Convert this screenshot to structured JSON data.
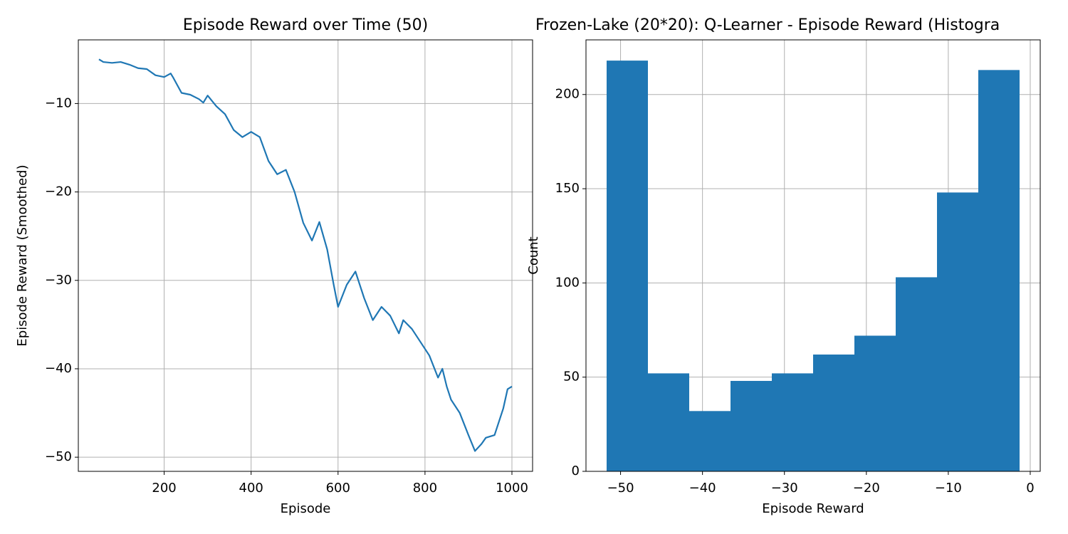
{
  "chart_data": [
    {
      "type": "line",
      "title": "Episode Reward over Time (50)",
      "x_label": "Episode",
      "y_label": "Episode Reward (Smoothed)",
      "x": [
        50,
        60,
        80,
        100,
        120,
        140,
        160,
        180,
        200,
        215,
        220,
        240,
        260,
        280,
        290,
        300,
        320,
        340,
        360,
        380,
        400,
        420,
        440,
        460,
        480,
        500,
        520,
        540,
        557,
        575,
        590,
        600,
        620,
        640,
        660,
        680,
        700,
        720,
        740,
        750,
        770,
        790,
        810,
        830,
        840,
        850,
        860,
        880,
        900,
        915,
        930,
        940,
        960,
        980,
        990,
        1000
      ],
      "values": [
        -5.0,
        -5.3,
        -5.4,
        -5.3,
        -5.6,
        -6.0,
        -6.1,
        -6.8,
        -7.0,
        -6.6,
        -7.0,
        -8.8,
        -9.0,
        -9.5,
        -9.9,
        -9.1,
        -10.3,
        -11.2,
        -13.0,
        -13.8,
        -13.2,
        -13.8,
        -16.5,
        -18.0,
        -17.5,
        -20.0,
        -23.5,
        -25.5,
        -23.4,
        -26.5,
        -30.5,
        -33.0,
        -30.5,
        -29.0,
        -32.0,
        -34.5,
        -33.0,
        -34.0,
        -36.0,
        -34.5,
        -35.5,
        -37.0,
        -38.5,
        -41.0,
        -40.0,
        -42.0,
        -43.5,
        -45.0,
        -47.5,
        -49.3,
        -48.5,
        -47.8,
        -47.5,
        -44.5,
        -42.3,
        -42.0
      ],
      "color": "#1f77b4",
      "grid": true,
      "xlim": [
        2.5,
        1047.5
      ],
      "xticks": [
        200,
        400,
        600,
        800,
        1000
      ],
      "ylim": [
        -51.6,
        -2.8
      ],
      "yticks": [
        {
          "value": -50,
          "label": "−50"
        },
        {
          "value": -40,
          "label": "−40"
        },
        {
          "value": -30,
          "label": "−30"
        },
        {
          "value": -20,
          "label": "−20"
        },
        {
          "value": -10,
          "label": "−10"
        }
      ]
    },
    {
      "type": "histogram",
      "title": "Frozen-Lake (20*20): Q-Learner - Episode Reward (Histogra",
      "x_label": "Episode Reward",
      "y_label": "Count",
      "bins": [
        -51.7,
        -46.66,
        -41.62,
        -36.58,
        -31.54,
        -26.5,
        -21.46,
        -16.42,
        -11.38,
        -6.34,
        -1.3
      ],
      "values": [
        218,
        52,
        32,
        48,
        52,
        62,
        72,
        103,
        148,
        213
      ],
      "color": "#1f77b4",
      "grid": true,
      "xlim": [
        -54.22,
        1.22
      ],
      "xticks": [
        {
          "value": -50,
          "label": "−50"
        },
        {
          "value": -40,
          "label": "−40"
        },
        {
          "value": -30,
          "label": "−30"
        },
        {
          "value": -20,
          "label": "−20"
        },
        {
          "value": -10,
          "label": "−10"
        },
        0
      ],
      "ylim": [
        0,
        229
      ],
      "yticks": [
        0,
        50,
        100,
        150,
        200
      ]
    }
  ]
}
